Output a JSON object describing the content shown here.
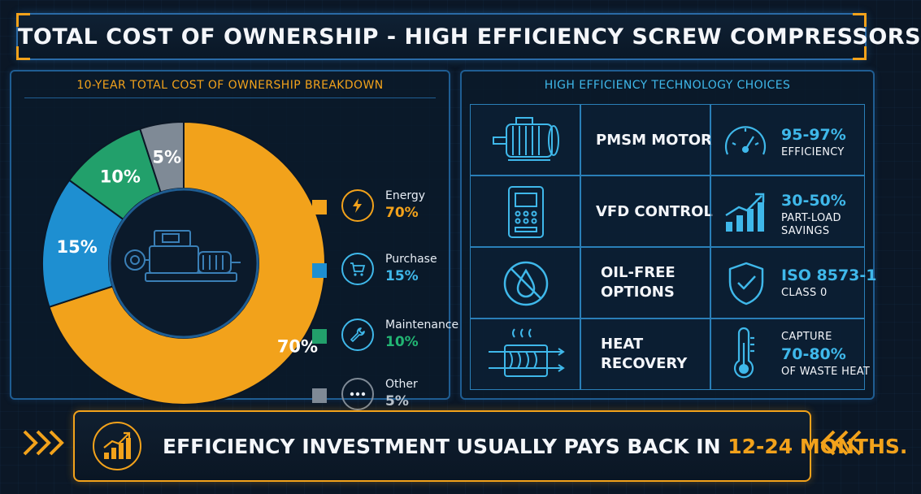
{
  "title": "TOTAL COST OF OWNERSHIP - HIGH EFFICIENCY SCREW COMPRESSORS",
  "chart_data": {
    "type": "pie",
    "title": "10-YEAR TOTAL COST OF OWNERSHIP BREAKDOWN",
    "categories": [
      "Energy",
      "Purchase",
      "Maintenance",
      "Other"
    ],
    "values": [
      70,
      15,
      10,
      5
    ],
    "value_labels": [
      "70%",
      "15%",
      "10%",
      "5%"
    ],
    "colors": [
      "#f2a21b",
      "#1e8fd1",
      "#22a06b",
      "#7f8a96"
    ],
    "legend_position": "right",
    "legend_icons": [
      "lightning-icon",
      "cart-icon",
      "wrench-icon",
      "dots-icon"
    ],
    "center_image": "compressor-icon"
  },
  "tech": {
    "title": "HIGH EFFICIENCY TECHNOLOGY CHOICES",
    "rows": [
      {
        "icon": "motor-icon",
        "name_lines": [
          "PMSM MOTOR"
        ],
        "stat_icon": "gauge-icon",
        "stat_lines": [
          {
            "text": "95-97%",
            "style": "big"
          },
          {
            "text": "EFFICIENCY",
            "style": "small"
          }
        ]
      },
      {
        "icon": "vfd-icon",
        "name_lines": [
          "VFD CONTROL"
        ],
        "stat_icon": "growth-chart-icon",
        "stat_lines": [
          {
            "text": "30-50%",
            "style": "big"
          },
          {
            "text": "PART-LOAD",
            "style": "small"
          },
          {
            "text": "SAVINGS",
            "style": "small"
          }
        ]
      },
      {
        "icon": "no-oil-icon",
        "name_lines": [
          "OIL-FREE",
          "OPTIONS"
        ],
        "stat_icon": "shield-check-icon",
        "stat_lines": [
          {
            "text": "ISO 8573-1",
            "style": "big"
          },
          {
            "text": "CLASS 0",
            "style": "small"
          }
        ]
      },
      {
        "icon": "heat-exchanger-icon",
        "name_lines": [
          "HEAT",
          "RECOVERY"
        ],
        "stat_icon": "thermometer-icon",
        "stat_lines": [
          {
            "text": "CAPTURE",
            "style": "small"
          },
          {
            "text": "70-80%",
            "style": "big"
          },
          {
            "text": "OF WASTE HEAT",
            "style": "small"
          }
        ]
      }
    ]
  },
  "footer": {
    "prefix": "EFFICIENCY INVESTMENT USUALLY PAYS BACK IN ",
    "highlight": "12-24 MONTHS.",
    "icon": "growth-chart-icon"
  }
}
